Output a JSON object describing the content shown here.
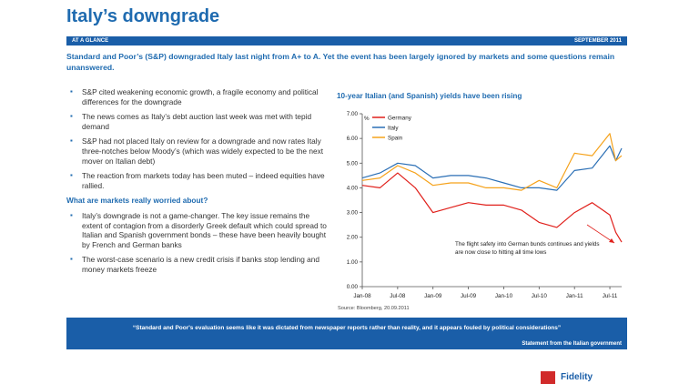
{
  "header": {
    "title": "Italy’s downgrade",
    "banner_left": "AT A GLANCE",
    "banner_right": "SEPTEMBER 2011"
  },
  "lead": "Standard and Poor’s (S&P) downgraded Italy last night from A+ to A. Yet the event has been largely ignored by markets and some questions remain unanswered.",
  "bullets1": [
    "S&P cited weakening economic growth, a fragile economy and political differences for the downgrade",
    "The news comes as Italy’s debt auction last week was met with tepid demand",
    "S&P had not placed Italy on review for a downgrade and now rates Italy three-notches below Moody’s (which was widely expected to be the next mover on Italian debt)",
    "The reaction from markets today has been muted – indeed equities have rallied."
  ],
  "subheading": "What are markets really worried about?",
  "bullets2": [
    "Italy’s downgrade is not a game-changer. The key issue remains the extent of contagion from a disorderly Greek default which could spread to Italian and Spanish government bonds – these have been heavily bought by French and German banks",
    "The worst-case scenario is a new credit crisis if banks stop lending and money markets freeze"
  ],
  "chart_data": {
    "type": "line",
    "title": "10-year Italian (and Spanish) yields have been rising",
    "ylabel": "%",
    "ylim": [
      0,
      7
    ],
    "yticks": [
      "0.00",
      "1.00",
      "2.00",
      "3.00",
      "4.00",
      "5.00",
      "6.00",
      "7.00"
    ],
    "xticks": [
      "Jan-08",
      "Jul-08",
      "Jan-09",
      "Jul-09",
      "Jan-10",
      "Jul-10",
      "Jan-11",
      "Jul-11"
    ],
    "x": [
      "Jan-08",
      "Apr-08",
      "Jul-08",
      "Oct-08",
      "Jan-09",
      "Apr-09",
      "Jul-09",
      "Oct-09",
      "Jan-10",
      "Apr-10",
      "Jul-10",
      "Oct-10",
      "Jan-11",
      "Apr-11",
      "Jul-11",
      "Aug-11",
      "Sep-11"
    ],
    "series": [
      {
        "name": "Germany",
        "color": "#e0201b",
        "values": [
          4.1,
          4.0,
          4.6,
          4.0,
          3.0,
          3.2,
          3.4,
          3.3,
          3.3,
          3.1,
          2.6,
          2.4,
          3.0,
          3.4,
          2.9,
          2.2,
          1.8
        ]
      },
      {
        "name": "Italy",
        "color": "#2b6fb5",
        "values": [
          4.4,
          4.6,
          5.0,
          4.9,
          4.4,
          4.5,
          4.5,
          4.4,
          4.2,
          4.0,
          4.0,
          3.9,
          4.7,
          4.8,
          5.7,
          5.1,
          5.6
        ]
      },
      {
        "name": "Spain",
        "color": "#f5a21b",
        "values": [
          4.3,
          4.4,
          4.9,
          4.6,
          4.1,
          4.2,
          4.2,
          4.0,
          4.0,
          3.9,
          4.3,
          4.0,
          5.4,
          5.3,
          6.2,
          5.1,
          5.3
        ]
      }
    ],
    "legend": "top-left",
    "annotation": "The flight safety into German bunds continues and yields are now close to hitting all time lows",
    "source": "Source: Bloomberg, 20.09.2011"
  },
  "quote": {
    "text": "“Standard and Poor's evaluation seems like it was dictated from newspaper reports rather than reality, and it appears fouled by political considerations”",
    "source": "Statement from the Italian government"
  },
  "logo": {
    "text": "Fidelity"
  }
}
